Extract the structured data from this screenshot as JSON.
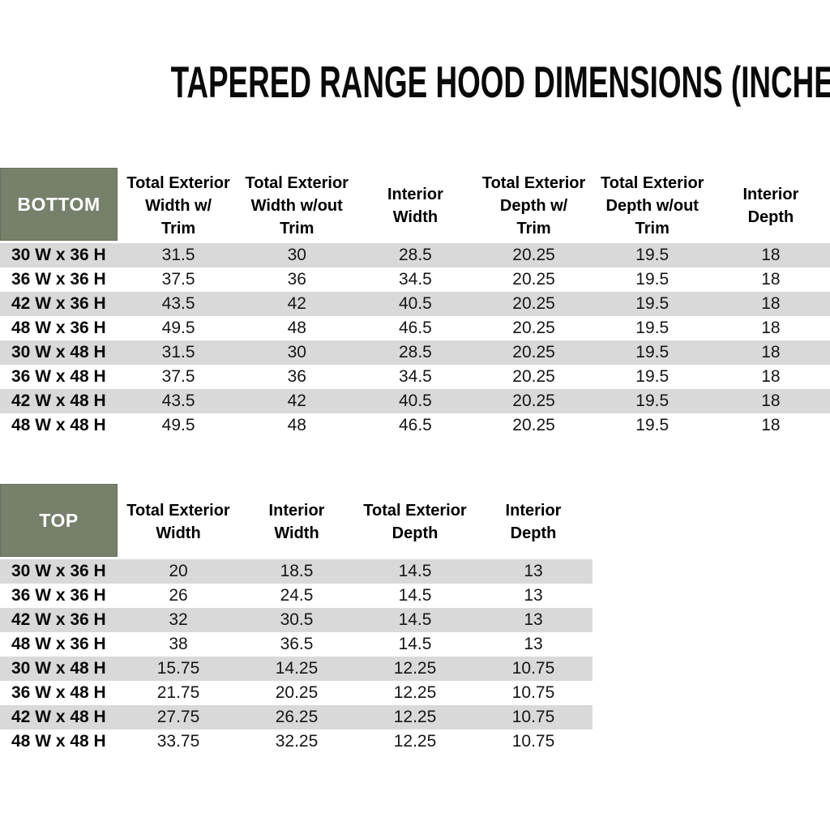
{
  "title": "TAPERED RANGE HOOD DIMENSIONS (INCHES)",
  "colors": {
    "header_green": "#76806A",
    "stripe_gray": "#D9D9D9",
    "title_text": "#0A0A0A",
    "corner_text": "#FFFFFF"
  },
  "bottom_table": {
    "corner_label": "BOTTOM",
    "columns": [
      "Total Exterior\nWidth w/\nTrim",
      "Total Exterior\nWidth w/out\nTrim",
      "Interior\nWidth",
      "Total Exterior\nDepth w/\nTrim",
      "Total Exterior\nDepth w/out\nTrim",
      "Interior\nDepth"
    ],
    "rows": [
      {
        "label": "30 W x 36 H",
        "values": [
          "31.5",
          "30",
          "28.5",
          "20.25",
          "19.5",
          "18"
        ]
      },
      {
        "label": "36 W x 36 H",
        "values": [
          "37.5",
          "36",
          "34.5",
          "20.25",
          "19.5",
          "18"
        ]
      },
      {
        "label": "42 W x 36 H",
        "values": [
          "43.5",
          "42",
          "40.5",
          "20.25",
          "19.5",
          "18"
        ]
      },
      {
        "label": "48 W x 36 H",
        "values": [
          "49.5",
          "48",
          "46.5",
          "20.25",
          "19.5",
          "18"
        ]
      },
      {
        "label": "30 W x 48 H",
        "values": [
          "31.5",
          "30",
          "28.5",
          "20.25",
          "19.5",
          "18"
        ]
      },
      {
        "label": "36 W x 48 H",
        "values": [
          "37.5",
          "36",
          "34.5",
          "20.25",
          "19.5",
          "18"
        ]
      },
      {
        "label": "42 W x 48 H",
        "values": [
          "43.5",
          "42",
          "40.5",
          "20.25",
          "19.5",
          "18"
        ]
      },
      {
        "label": "48 W x 48 H",
        "values": [
          "49.5",
          "48",
          "46.5",
          "20.25",
          "19.5",
          "18"
        ]
      }
    ]
  },
  "top_table": {
    "corner_label": "TOP",
    "columns": [
      "Total Exterior\nWidth",
      "Interior\nWidth",
      "Total Exterior\nDepth",
      "Interior\nDepth"
    ],
    "rows": [
      {
        "label": "30 W x 36 H",
        "values": [
          "20",
          "18.5",
          "14.5",
          "13"
        ]
      },
      {
        "label": "36 W x 36 H",
        "values": [
          "26",
          "24.5",
          "14.5",
          "13"
        ]
      },
      {
        "label": "42 W x 36 H",
        "values": [
          "32",
          "30.5",
          "14.5",
          "13"
        ]
      },
      {
        "label": "48 W x 36 H",
        "values": [
          "38",
          "36.5",
          "14.5",
          "13"
        ]
      },
      {
        "label": "30 W x 48 H",
        "values": [
          "15.75",
          "14.25",
          "12.25",
          "10.75"
        ]
      },
      {
        "label": "36 W x 48 H",
        "values": [
          "21.75",
          "20.25",
          "12.25",
          "10.75"
        ]
      },
      {
        "label": "42 W x 48 H",
        "values": [
          "27.75",
          "26.25",
          "12.25",
          "10.75"
        ]
      },
      {
        "label": "48 W x 48 H",
        "values": [
          "33.75",
          "32.25",
          "12.25",
          "10.75"
        ]
      }
    ]
  }
}
